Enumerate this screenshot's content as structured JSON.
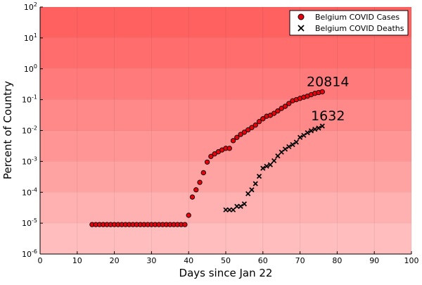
{
  "chart_data": {
    "type": "scatter",
    "title": "",
    "xlabel": "Days since Jan 22",
    "ylabel": "Percent of Country",
    "xlim": [
      0,
      100
    ],
    "ylim": [
      1e-06,
      100
    ],
    "yscale": "log",
    "grid": true,
    "legend_position": "top-right",
    "x_ticks": [
      "0",
      "10",
      "20",
      "30",
      "40",
      "50",
      "60",
      "70",
      "80",
      "90",
      "100"
    ],
    "y_ticks": [
      {
        "base": "10",
        "exp": "2"
      },
      {
        "base": "10",
        "exp": "1"
      },
      {
        "base": "10",
        "exp": "0"
      },
      {
        "base": "10",
        "exp": "-1"
      },
      {
        "base": "10",
        "exp": "-2"
      },
      {
        "base": "10",
        "exp": "-3"
      },
      {
        "base": "10",
        "exp": "-4"
      },
      {
        "base": "10",
        "exp": "-5"
      },
      {
        "base": "10",
        "exp": "-6"
      }
    ],
    "series": [
      {
        "name": "Belgium COVID Cases",
        "marker": "circle",
        "color": "#e8000b",
        "x": [
          14,
          15,
          16,
          17,
          18,
          19,
          20,
          21,
          22,
          23,
          24,
          25,
          26,
          27,
          28,
          29,
          30,
          31,
          32,
          33,
          34,
          35,
          36,
          37,
          38,
          39,
          40,
          41,
          42,
          43,
          44,
          45,
          46,
          47,
          48,
          49,
          50,
          51,
          52,
          53,
          54,
          55,
          56,
          57,
          58,
          59,
          60,
          61,
          62,
          63,
          64,
          65,
          66,
          67,
          68,
          69,
          70,
          71,
          72,
          73,
          74,
          75,
          76
        ],
        "y": [
          9e-06,
          9e-06,
          9e-06,
          9e-06,
          9e-06,
          9e-06,
          9e-06,
          9e-06,
          9e-06,
          9e-06,
          9e-06,
          9e-06,
          9e-06,
          9e-06,
          9e-06,
          9e-06,
          9e-06,
          9e-06,
          9e-06,
          9e-06,
          9e-06,
          9e-06,
          9e-06,
          9e-06,
          9e-06,
          9e-06,
          1.8e-05,
          7e-05,
          0.00012,
          0.00021,
          0.00043,
          0.00095,
          0.00145,
          0.00175,
          0.00205,
          0.00235,
          0.00265,
          0.00265,
          0.0047,
          0.006,
          0.0075,
          0.0088,
          0.0105,
          0.0125,
          0.015,
          0.0195,
          0.024,
          0.029,
          0.031,
          0.036,
          0.043,
          0.052,
          0.061,
          0.075,
          0.092,
          0.1,
          0.11,
          0.12,
          0.13,
          0.145,
          0.16,
          0.17,
          0.18
        ]
      },
      {
        "name": "Belgium COVID Deaths",
        "marker": "x",
        "color": "#000000",
        "x": [
          50,
          51,
          52,
          53,
          54,
          55,
          56,
          57,
          58,
          59,
          60,
          61,
          62,
          63,
          64,
          65,
          66,
          67,
          68,
          69,
          70,
          71,
          72,
          73,
          74,
          75,
          76
        ],
        "y": [
          2.7e-05,
          2.7e-05,
          2.7e-05,
          3.5e-05,
          3.5e-05,
          4.2e-05,
          9e-05,
          0.00012,
          0.00019,
          0.00033,
          0.0006,
          0.0007,
          0.00078,
          0.00105,
          0.0015,
          0.002,
          0.0025,
          0.003,
          0.0035,
          0.0042,
          0.006,
          0.007,
          0.0085,
          0.0098,
          0.011,
          0.012,
          0.014
        ]
      }
    ],
    "annotations": [
      {
        "text": "20814",
        "x": 76,
        "y": 0.18
      },
      {
        "text": "1632",
        "x": 76,
        "y": 0.014
      }
    ],
    "background_gradient": [
      "#ff6060",
      "#ffbdbd"
    ]
  }
}
